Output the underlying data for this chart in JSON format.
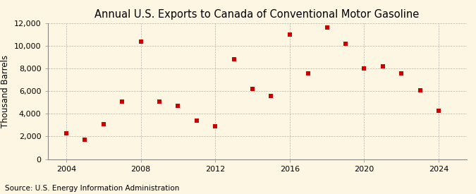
{
  "title": "Annual U.S. Exports to Canada of Conventional Motor Gasoline",
  "ylabel": "Thousand Barrels",
  "source": "Source: U.S. Energy Information Administration",
  "years": [
    2004,
    2005,
    2006,
    2007,
    2008,
    2009,
    2010,
    2011,
    2012,
    2013,
    2014,
    2015,
    2016,
    2017,
    2018,
    2019,
    2020,
    2021,
    2022,
    2023,
    2024
  ],
  "values": [
    2300,
    1700,
    3100,
    5100,
    10400,
    5100,
    4700,
    3400,
    2900,
    8800,
    6200,
    5600,
    11000,
    7600,
    11600,
    10200,
    8000,
    8200,
    7600,
    6100,
    4300
  ],
  "marker_color": "#cc0000",
  "marker": "s",
  "marker_size": 4,
  "bg_color": "#fdf6e3",
  "grid_color": "#999999",
  "ylim": [
    0,
    12000
  ],
  "yticks": [
    0,
    2000,
    4000,
    6000,
    8000,
    10000,
    12000
  ],
  "xticks": [
    2004,
    2008,
    2012,
    2016,
    2020,
    2024
  ],
  "xlim": [
    2003.0,
    2025.5
  ],
  "title_fontsize": 10.5,
  "label_fontsize": 8.5,
  "tick_fontsize": 8,
  "source_fontsize": 7.5
}
